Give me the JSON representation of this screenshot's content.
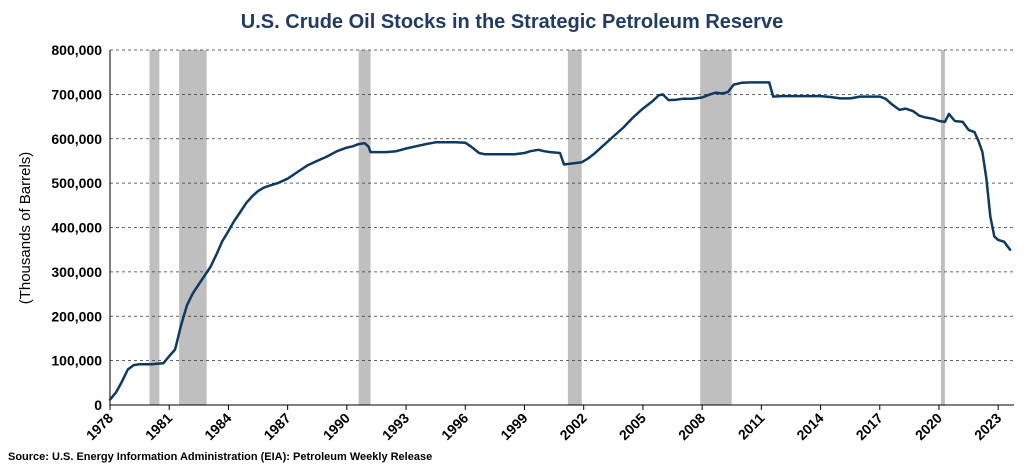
{
  "chart_data": {
    "type": "line",
    "title": "U.S. Crude Oil Stocks in the Strategic Petroleum Reserve",
    "ylabel": "(Thousands of Barrels)",
    "xlabel": "",
    "source": "Source: U.S. Energy Information Administration (EIA): Petroleum Weekly Release",
    "xlim": [
      1978,
      2023.8
    ],
    "ylim": [
      0,
      800000
    ],
    "x_ticks": [
      1978,
      1981,
      1984,
      1987,
      1990,
      1993,
      1996,
      1999,
      2002,
      2005,
      2008,
      2011,
      2014,
      2017,
      2020,
      2023
    ],
    "x_tick_labels": [
      "1978",
      "1981",
      "1984",
      "1987",
      "1990",
      "1993",
      "1996",
      "1999",
      "2002",
      "2005",
      "2008",
      "2011",
      "2014",
      "2017",
      "2020",
      "2023"
    ],
    "y_ticks": [
      0,
      100000,
      200000,
      300000,
      400000,
      500000,
      600000,
      700000,
      800000
    ],
    "y_tick_labels": [
      "0",
      "100,000",
      "200,000",
      "300,000",
      "400,000",
      "500,000",
      "600,000",
      "700,000",
      "800,000"
    ],
    "grid": "horizontal dashed",
    "recessions": [
      [
        1980.0,
        1980.5
      ],
      [
        1981.5,
        1982.9
      ],
      [
        1990.6,
        1991.2
      ],
      [
        2001.2,
        2001.9
      ],
      [
        2007.9,
        2009.5
      ],
      [
        2020.1,
        2020.3
      ]
    ],
    "colors": {
      "line": "#0f3a60",
      "title": "#1f3d64",
      "recession": "#bfbfbf",
      "grid": "#333333"
    },
    "series": [
      {
        "x": [
          1978.0,
          1978.3,
          1978.6,
          1978.9,
          1979.2,
          1979.5,
          1979.8,
          1980.1,
          1980.4,
          1980.7,
          1981.0,
          1981.3,
          1981.6,
          1981.9,
          1982.2,
          1982.5,
          1982.8,
          1983.1,
          1983.4,
          1983.7,
          1984.0,
          1984.3,
          1984.6,
          1984.9,
          1985.2,
          1985.5,
          1985.8,
          1986.0,
          1986.5,
          1987.0,
          1987.5,
          1988.0,
          1988.5,
          1989.0,
          1989.5,
          1990.0,
          1990.3,
          1990.6,
          1990.9,
          1991.1,
          1991.2,
          1992.0,
          1992.5,
          1993.0,
          1993.5,
          1994.0,
          1994.5,
          1995.0,
          1995.5,
          1996.0,
          1996.3,
          1996.7,
          1997.0,
          1997.5,
          1998.0,
          1998.5,
          1999.0,
          1999.3,
          1999.7,
          2000.0,
          2000.3,
          2000.8,
          2001.0,
          2001.5,
          2001.9,
          2002.2,
          2002.5,
          2003.0,
          2003.5,
          2004.0,
          2004.5,
          2005.0,
          2005.5,
          2005.8,
          2006.0,
          2006.3,
          2006.7,
          2007.0,
          2007.5,
          2008.0,
          2008.4,
          2008.7,
          2009.0,
          2009.3,
          2009.6,
          2010.0,
          2010.5,
          2011.0,
          2011.4,
          2011.6,
          2012.0,
          2013.0,
          2013.5,
          2014.0,
          2014.5,
          2015.0,
          2015.5,
          2016.0,
          2016.5,
          2017.0,
          2017.3,
          2017.6,
          2018.0,
          2018.3,
          2018.7,
          2019.0,
          2019.3,
          2019.7,
          2020.0,
          2020.3,
          2020.5,
          2020.8,
          2021.2,
          2021.5,
          2021.8,
          2022.0,
          2022.2,
          2022.4,
          2022.6,
          2022.8,
          2023.0,
          2023.3,
          2023.6
        ],
        "y": [
          12000,
          28000,
          52000,
          80000,
          90000,
          92000,
          92000,
          92000,
          93000,
          94000,
          110000,
          125000,
          180000,
          225000,
          252000,
          272000,
          292000,
          312000,
          340000,
          370000,
          392000,
          415000,
          435000,
          455000,
          470000,
          482000,
          490000,
          493000,
          500000,
          510000,
          525000,
          540000,
          550000,
          560000,
          572000,
          580000,
          583000,
          588000,
          590000,
          582000,
          570000,
          570000,
          572000,
          578000,
          583000,
          588000,
          592000,
          592000,
          592000,
          591000,
          582000,
          568000,
          565000,
          565000,
          565000,
          565000,
          568000,
          572000,
          575000,
          572000,
          570000,
          568000,
          542000,
          545000,
          547000,
          555000,
          565000,
          585000,
          605000,
          625000,
          648000,
          668000,
          685000,
          698000,
          700000,
          687000,
          688000,
          690000,
          690000,
          693000,
          700000,
          704000,
          702000,
          705000,
          722000,
          726000,
          727000,
          727000,
          727000,
          695000,
          696000,
          696000,
          696000,
          696000,
          694000,
          691000,
          691000,
          695000,
          695000,
          695000,
          690000,
          678000,
          665000,
          668000,
          662000,
          652000,
          648000,
          645000,
          640000,
          638000,
          656000,
          640000,
          638000,
          620000,
          615000,
          595000,
          570000,
          510000,
          425000,
          380000,
          372000,
          368000,
          350000
        ]
      }
    ]
  }
}
